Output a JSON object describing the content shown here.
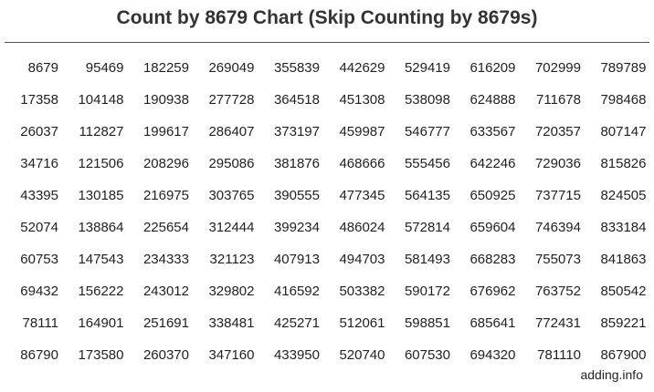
{
  "title": "Count by 8679 Chart (Skip Counting by 8679s)",
  "table": {
    "rows": [
      [
        "8679",
        "95469",
        "182259",
        "269049",
        "355839",
        "442629",
        "529419",
        "616209",
        "702999",
        "789789"
      ],
      [
        "17358",
        "104148",
        "190938",
        "277728",
        "364518",
        "451308",
        "538098",
        "624888",
        "711678",
        "798468"
      ],
      [
        "26037",
        "112827",
        "199617",
        "286407",
        "373197",
        "459987",
        "546777",
        "633567",
        "720357",
        "807147"
      ],
      [
        "34716",
        "121506",
        "208296",
        "295086",
        "381876",
        "468666",
        "555456",
        "642246",
        "729036",
        "815826"
      ],
      [
        "43395",
        "130185",
        "216975",
        "303765",
        "390555",
        "477345",
        "564135",
        "650925",
        "737715",
        "824505"
      ],
      [
        "52074",
        "138864",
        "225654",
        "312444",
        "399234",
        "486024",
        "572814",
        "659604",
        "746394",
        "833184"
      ],
      [
        "60753",
        "147543",
        "234333",
        "321123",
        "407913",
        "494703",
        "581493",
        "668283",
        "755073",
        "841863"
      ],
      [
        "69432",
        "156222",
        "243012",
        "329802",
        "416592",
        "503382",
        "590172",
        "676962",
        "763752",
        "850542"
      ],
      [
        "78111",
        "164901",
        "251691",
        "338481",
        "425271",
        "512061",
        "598851",
        "685641",
        "772431",
        "859221"
      ],
      [
        "86790",
        "173580",
        "260370",
        "347160",
        "433950",
        "520740",
        "607530",
        "694320",
        "781110",
        "867900"
      ]
    ]
  },
  "footer": "adding.info"
}
